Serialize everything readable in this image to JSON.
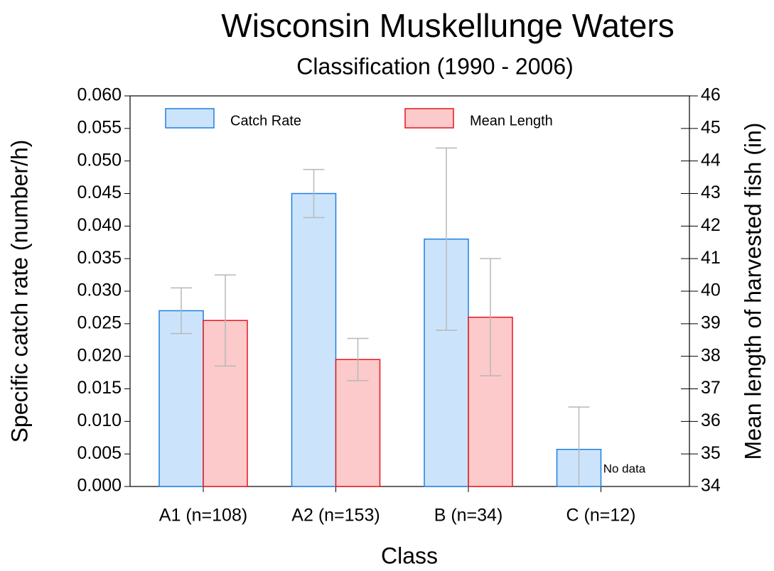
{
  "chart_data": {
    "type": "bar",
    "title": "Wisconsin Muskellunge Waters",
    "subtitle": "Classification (1990 - 2006)",
    "x_label": "Class",
    "y_label": "Specific catch rate (number/h)",
    "y2_label": "Mean length of harvested fish (in)",
    "categories": [
      "A1 (n=108)",
      "A2 (n=153)",
      "B (n=34)",
      "C (n=12)"
    ],
    "series": [
      {
        "name": "Catch Rate",
        "color": "#cce4fb",
        "edge_color": "#1f7fe0",
        "values": [
          0.027,
          0.045,
          0.038,
          0.0057
        ],
        "errors": [
          0.0035,
          0.0037,
          0.014,
          0.0065
        ]
      },
      {
        "name": "Mean Length",
        "color": "#fccaca",
        "edge_color": "#e8141c",
        "axis": "y2",
        "values": [
          39.1,
          37.9,
          39.2,
          null
        ],
        "errors": [
          1.4,
          0.65,
          1.8,
          null
        ]
      }
    ],
    "annotations": [
      {
        "text": "No data",
        "category": 3
      }
    ],
    "ylim": [
      0,
      0.06
    ],
    "yticks": [
      {
        "value": 0,
        "label": "0.000"
      },
      {
        "value": 0.005,
        "label": "0.005"
      },
      {
        "value": 0.01,
        "label": "0.010"
      },
      {
        "value": 0.015,
        "label": "0.015"
      },
      {
        "value": 0.02,
        "label": "0.020"
      },
      {
        "value": 0.025,
        "label": "0.025"
      },
      {
        "value": 0.03,
        "label": "0.030"
      },
      {
        "value": 0.035,
        "label": "0.035"
      },
      {
        "value": 0.04,
        "label": "0.040"
      },
      {
        "value": 0.045,
        "label": "0.045"
      },
      {
        "value": 0.05,
        "label": "0.050"
      },
      {
        "value": 0.055,
        "label": "0.055"
      },
      {
        "value": 0.06,
        "label": "0.060"
      }
    ],
    "y2lim": [
      34,
      46
    ],
    "y2ticks": [
      34,
      35,
      36,
      37,
      38,
      39,
      40,
      41,
      42,
      43,
      44,
      45,
      46
    ],
    "error_color": "#b8b8b8",
    "legend": "top"
  }
}
